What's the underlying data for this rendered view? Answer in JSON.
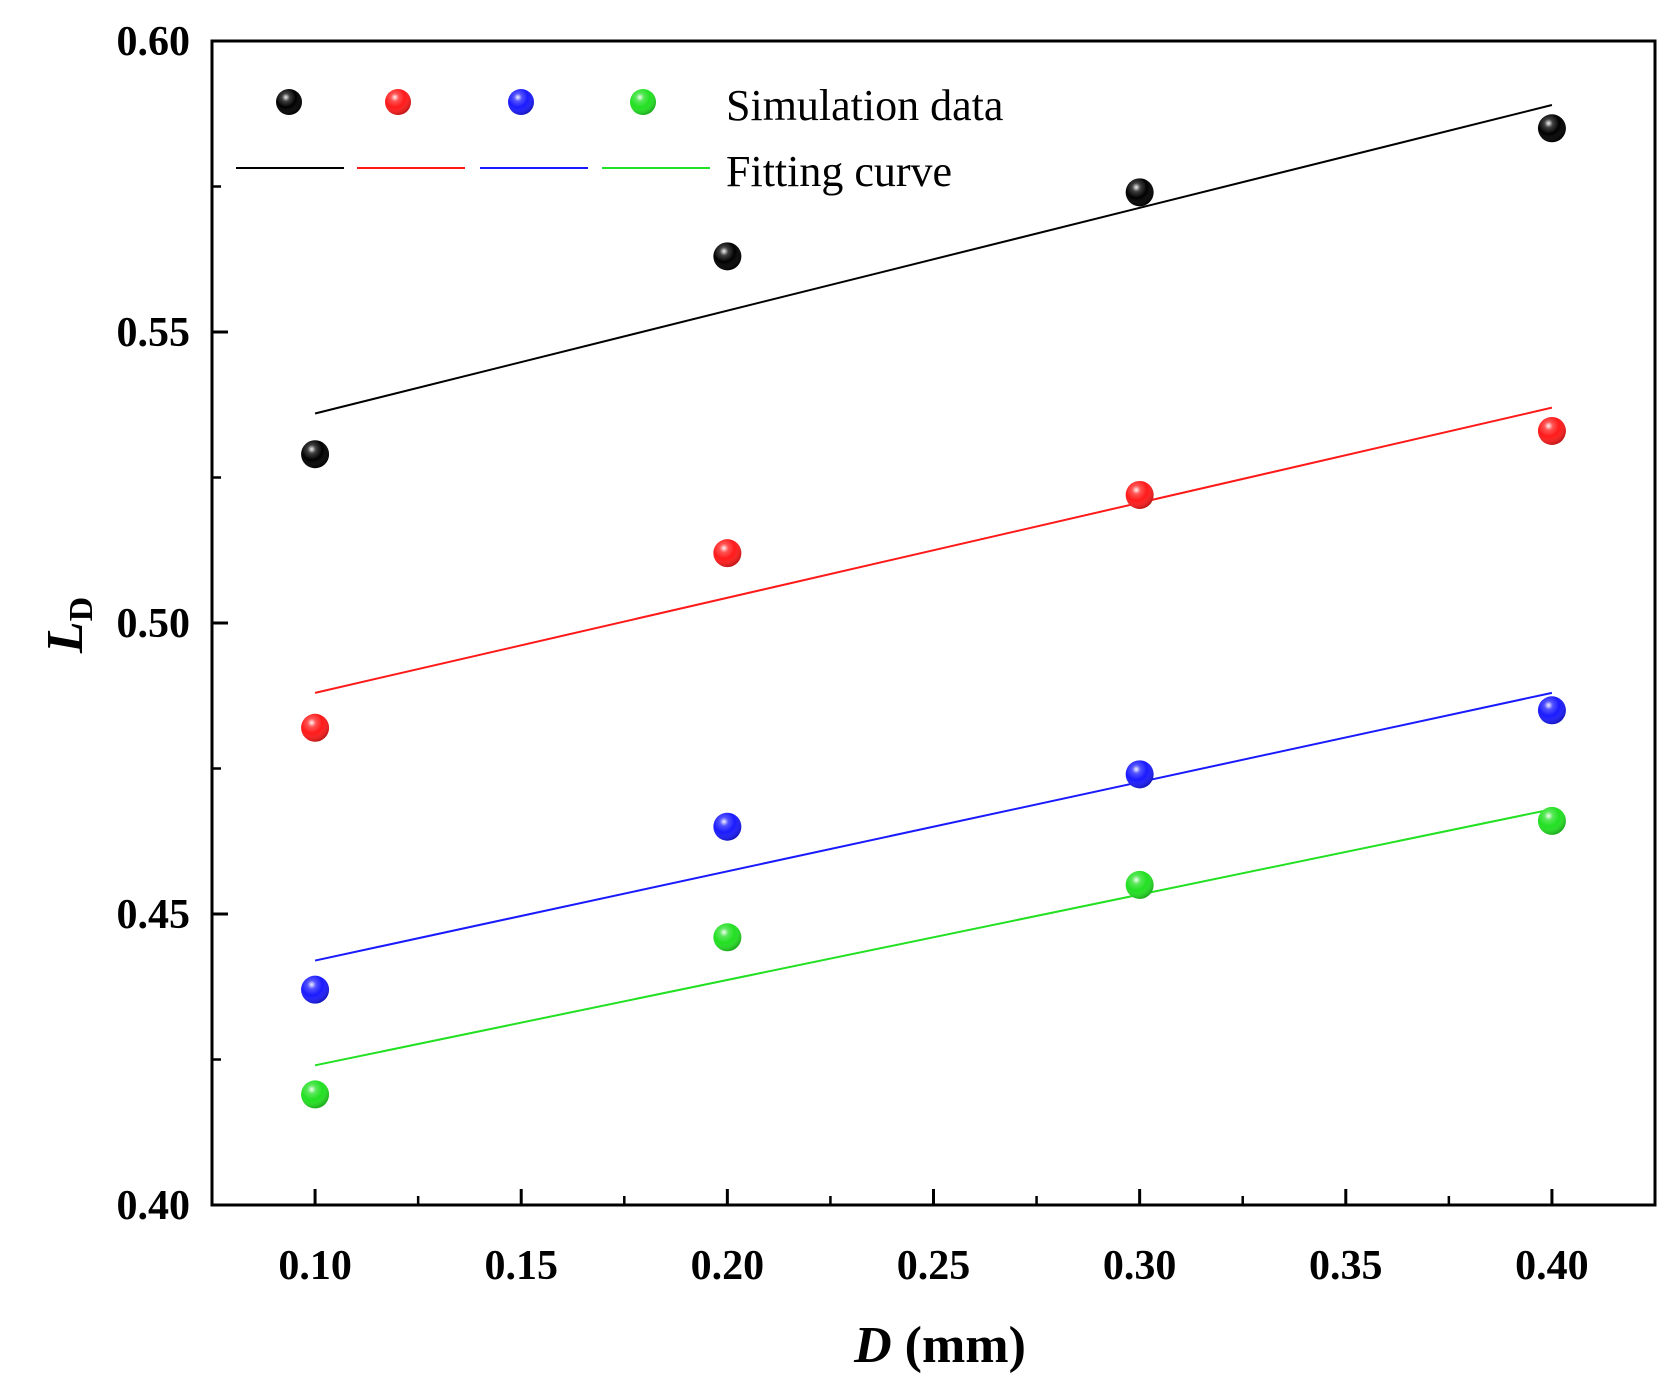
{
  "chart_data": {
    "type": "scatter",
    "title": "",
    "xlabel": {
      "var": "D",
      "unit": " (mm)"
    },
    "ylabel": {
      "var": "L",
      "sub": "D"
    },
    "xlim": [
      0.075,
      0.425
    ],
    "ylim": [
      0.4,
      0.6
    ],
    "x_ticks": [
      "0.10",
      "0.15",
      "0.20",
      "0.25",
      "0.30",
      "0.35",
      "0.40"
    ],
    "y_ticks": [
      "0.40",
      "0.45",
      "0.50",
      "0.55",
      "0.60"
    ],
    "x": [
      0.1,
      0.2,
      0.3,
      0.4
    ],
    "series": [
      {
        "color": "#000000",
        "values": [
          0.529,
          0.563,
          0.574,
          0.585
        ],
        "fit": [
          [
            0.1,
            0.536
          ],
          [
            0.4,
            0.589
          ]
        ]
      },
      {
        "color": "#ff1a1a",
        "values": [
          0.482,
          0.512,
          0.522,
          0.533
        ],
        "fit": [
          [
            0.1,
            0.488
          ],
          [
            0.4,
            0.537
          ]
        ]
      },
      {
        "color": "#1a1aff",
        "values": [
          0.437,
          0.465,
          0.474,
          0.485
        ],
        "fit": [
          [
            0.1,
            0.442
          ],
          [
            0.4,
            0.488
          ]
        ]
      },
      {
        "color": "#22e022",
        "values": [
          0.419,
          0.446,
          0.455,
          0.466
        ],
        "fit": [
          [
            0.1,
            0.424
          ],
          [
            0.4,
            0.468
          ]
        ]
      }
    ],
    "legend": {
      "placement": "top-left",
      "marker_label": "Simulation data",
      "line_label": "Fitting curve"
    },
    "grid": false
  }
}
